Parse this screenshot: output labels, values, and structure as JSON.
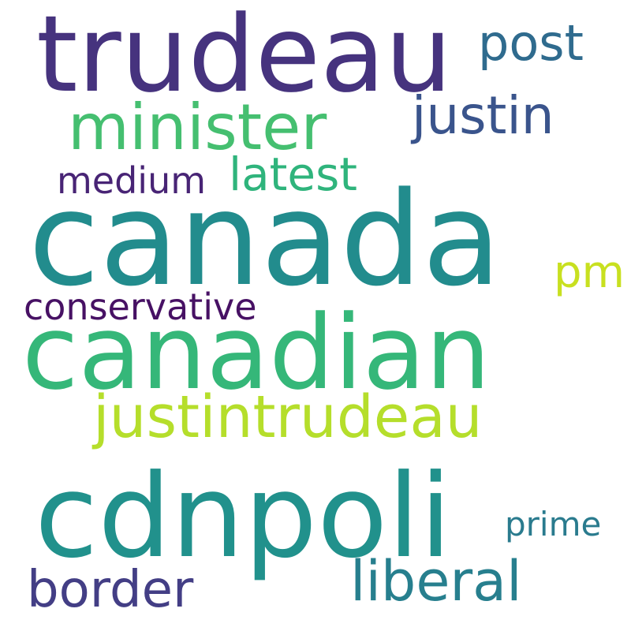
{
  "word_cloud": {
    "words": [
      {
        "id": "trudeau",
        "text": "trudeau",
        "color": "#46337e"
      },
      {
        "id": "post",
        "text": "post",
        "color": "#2f6b8e"
      },
      {
        "id": "minister",
        "text": "minister",
        "color": "#45bf70"
      },
      {
        "id": "justin",
        "text": "justin",
        "color": "#3a548c"
      },
      {
        "id": "medium",
        "text": "medium",
        "color": "#482475"
      },
      {
        "id": "latest",
        "text": "latest",
        "color": "#2fb47c"
      },
      {
        "id": "canada",
        "text": "canada",
        "color": "#228c8d"
      },
      {
        "id": "pm",
        "text": "pm",
        "color": "#c8e020"
      },
      {
        "id": "conservative",
        "text": "conservative",
        "color": "#471164"
      },
      {
        "id": "canadian",
        "text": "canadian",
        "color": "#35b779"
      },
      {
        "id": "justintrudeau",
        "text": "justintrudeau",
        "color": "#b5de2b"
      },
      {
        "id": "cdnpoli",
        "text": "cdnpoli",
        "color": "#21918c"
      },
      {
        "id": "prime",
        "text": "prime",
        "color": "#2a7b8e"
      },
      {
        "id": "border",
        "text": "border",
        "color": "#433e85"
      },
      {
        "id": "liberal",
        "text": "liberal",
        "color": "#277f8e"
      }
    ]
  }
}
